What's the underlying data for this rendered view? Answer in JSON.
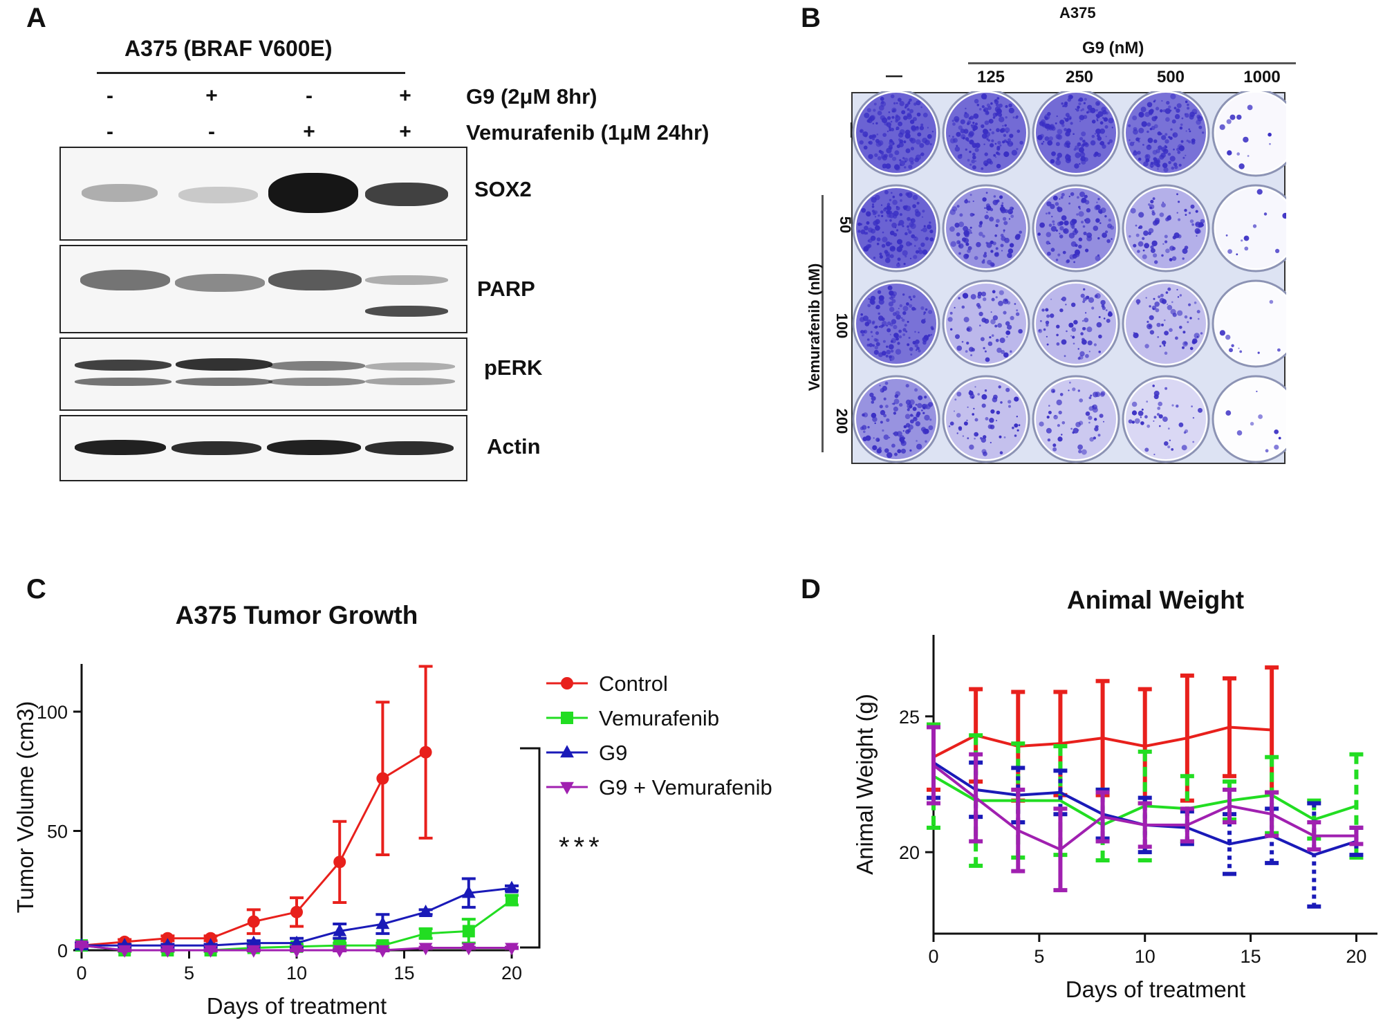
{
  "panel_labels": {
    "a": "A",
    "b": "B",
    "c": "C",
    "d": "D"
  },
  "panel_a": {
    "cell_line": "A375  (BRAF V600E)",
    "treatments": [
      {
        "label": "G9 (2μM 8hr)",
        "signs": [
          "-",
          "+",
          "-",
          "+"
        ]
      },
      {
        "label": "Vemurafenib  (1μM 24hr)",
        "signs": [
          "-",
          "-",
          "+",
          "+"
        ]
      }
    ],
    "blots": [
      "SOX2",
      "PARP",
      "pERK",
      "Actin"
    ]
  },
  "panel_b": {
    "cell_line": "A375",
    "g9_header": "G9 (nM)",
    "g9_doses": [
      "—",
      "125",
      "250",
      "500",
      "1000"
    ],
    "vem_header": "Vemurafenib (nM)",
    "vem_doses": [
      "—",
      "50",
      "100",
      "200"
    ],
    "colors": {
      "stain": "#3a2fc4",
      "plate": "#dde3f3"
    }
  },
  "chart_data": [
    {
      "type": "line",
      "title": "A375 Tumor Growth",
      "xlabel": "Days of treatment",
      "ylabel": "Tumor Volume (cm3)",
      "xlim": [
        0,
        20
      ],
      "ylim": [
        0,
        120
      ],
      "xticks": [
        0,
        5,
        10,
        15,
        20
      ],
      "yticks": [
        0,
        50,
        100
      ],
      "legend_position": "right",
      "annotation": "***",
      "series": [
        {
          "name": "Control",
          "marker": "circle",
          "color": "#e8201c",
          "x": [
            0,
            2,
            4,
            6,
            8,
            10,
            12,
            14,
            16
          ],
          "y": [
            2,
            3.5,
            5,
            5,
            12,
            16,
            37,
            72,
            83
          ],
          "err": [
            1,
            1,
            1,
            1,
            5,
            6,
            17,
            32,
            36
          ]
        },
        {
          "name": "Vemurafenib",
          "marker": "square",
          "color": "#22dd22",
          "x": [
            0,
            2,
            4,
            6,
            8,
            10,
            12,
            14,
            16,
            18,
            20
          ],
          "y": [
            2,
            0,
            0,
            0,
            1,
            1.5,
            2,
            2,
            7,
            8,
            21
          ],
          "err": [
            1,
            0.5,
            0.5,
            0.5,
            1,
            1,
            1,
            1,
            2,
            5,
            2
          ]
        },
        {
          "name": "G9",
          "marker": "triangle-up",
          "color": "#1a1ab8",
          "x": [
            0,
            2,
            4,
            6,
            8,
            10,
            12,
            14,
            16,
            18,
            20
          ],
          "y": [
            2,
            2,
            2,
            2,
            3,
            3,
            8,
            11,
            16,
            24,
            26
          ],
          "err": [
            1,
            0.5,
            0.5,
            0.5,
            1,
            2,
            3,
            4,
            1,
            6,
            1
          ]
        },
        {
          "name": "G9 + Vemurafenib",
          "marker": "triangle-down",
          "color": "#a020b0",
          "x": [
            0,
            2,
            4,
            6,
            8,
            10,
            12,
            14,
            16,
            18,
            20
          ],
          "y": [
            2,
            0,
            0,
            0,
            0,
            0,
            0,
            0,
            1,
            1,
            1
          ],
          "err": [
            0.5,
            0.3,
            0.3,
            0.3,
            0.3,
            0.3,
            0.3,
            0.3,
            0.3,
            0.3,
            0.3
          ]
        }
      ]
    },
    {
      "type": "line",
      "title": "Animal Weight",
      "xlabel": "Days of treatment",
      "ylabel": "Animal Weight (g)",
      "xlim": [
        0,
        21
      ],
      "ylim": [
        17,
        28
      ],
      "xticks": [
        0,
        5,
        10,
        15,
        20
      ],
      "yticks": [
        20,
        25
      ],
      "series": [
        {
          "name": "Control",
          "color": "#e8201c",
          "x": [
            0,
            2,
            4,
            6,
            8,
            10,
            12,
            14,
            16
          ],
          "y": [
            23.5,
            24.3,
            23.9,
            24.0,
            24.2,
            23.9,
            24.2,
            24.6,
            24.5
          ],
          "err": [
            1.2,
            1.7,
            2.0,
            1.9,
            2.1,
            2.1,
            2.3,
            1.8,
            2.3
          ]
        },
        {
          "name": "Vemurafenib",
          "color": "#22dd22",
          "x": [
            0,
            2,
            4,
            6,
            8,
            10,
            12,
            14,
            16,
            18,
            20
          ],
          "y": [
            22.8,
            21.9,
            21.9,
            21.9,
            21.0,
            21.7,
            21.6,
            21.9,
            22.1,
            21.2,
            21.7
          ],
          "err": [
            1.9,
            2.4,
            2.1,
            2.0,
            1.3,
            2.0,
            1.2,
            0.7,
            1.4,
            0.7,
            1.9
          ]
        },
        {
          "name": "G9",
          "color": "#1a1ab8",
          "x": [
            0,
            2,
            4,
            6,
            8,
            10,
            12,
            14,
            16,
            18,
            20
          ],
          "y": [
            23.3,
            22.3,
            22.1,
            22.2,
            21.4,
            21.0,
            20.9,
            20.3,
            20.6,
            19.9,
            20.4
          ],
          "err": [
            1.3,
            1.0,
            1.0,
            0.8,
            0.9,
            1.0,
            0.6,
            1.1,
            1.0,
            1.9,
            0.5
          ]
        },
        {
          "name": "G9 + Vemurafenib",
          "color": "#a020b0",
          "x": [
            0,
            2,
            4,
            6,
            8,
            10,
            12,
            14,
            16,
            18,
            20
          ],
          "y": [
            23.2,
            22.0,
            20.8,
            20.1,
            21.3,
            21.0,
            21.0,
            21.7,
            21.4,
            20.6,
            20.6
          ],
          "err": [
            1.4,
            1.6,
            1.5,
            1.5,
            0.9,
            0.8,
            0.6,
            0.6,
            0.8,
            0.5,
            0.3
          ]
        }
      ]
    }
  ]
}
